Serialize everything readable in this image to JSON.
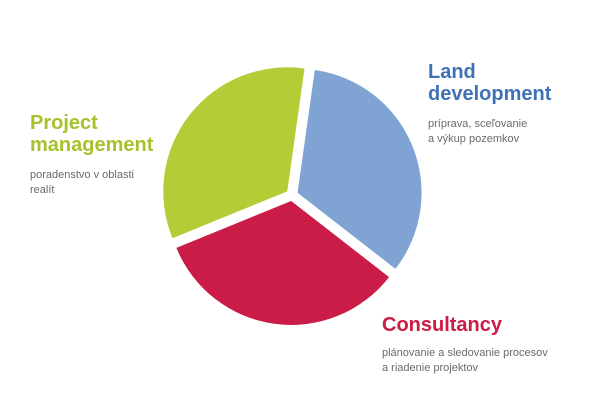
{
  "chart_data": {
    "type": "pie",
    "slices": [
      {
        "key": "land",
        "title_lines": [
          "Land",
          "development"
        ],
        "desc_lines": [
          "príprava, sceľovanie",
          "a výkup pozemkov"
        ],
        "value": 33.3,
        "color": "#7fa4d3",
        "title_color": "#3f71b7"
      },
      {
        "key": "consult",
        "title_lines": [
          "Consultancy"
        ],
        "desc_lines": [
          "plánovanie a sledovanie procesov",
          "a riadenie projektov"
        ],
        "value": 33.3,
        "color": "#cb1b47",
        "title_color": "#cb1b47"
      },
      {
        "key": "project",
        "title_lines": [
          "Project",
          "management"
        ],
        "desc_lines": [
          "poradenstvo v oblasti",
          "realít"
        ],
        "value": 33.4,
        "color": "#b4cc35",
        "title_color": "#a5c22b"
      }
    ]
  }
}
